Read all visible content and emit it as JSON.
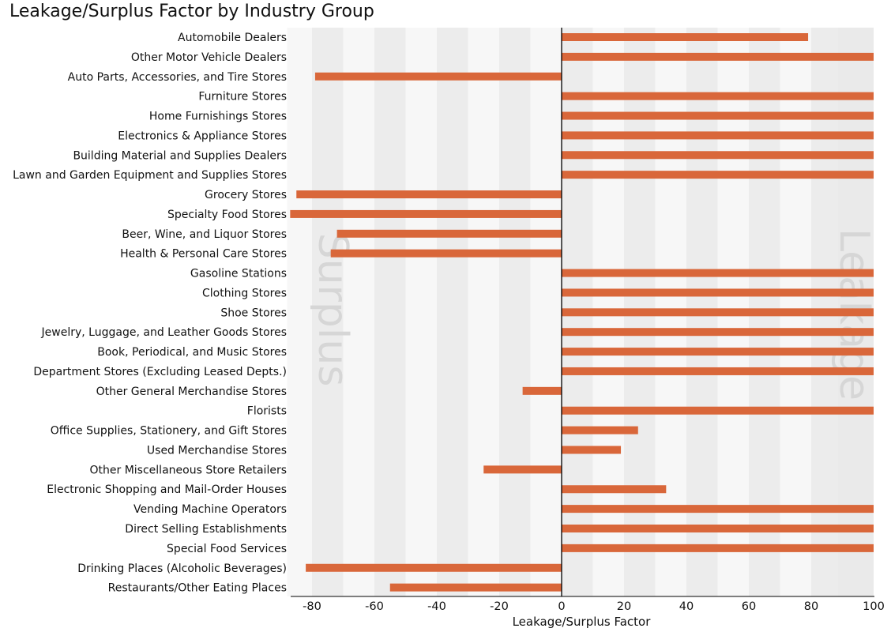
{
  "chart_data": {
    "type": "bar",
    "orientation": "horizontal",
    "title": "Leakage/Surplus Factor by Industry Group",
    "xlabel": "Leakage/Surplus Factor",
    "ylabel": "",
    "xlim": [
      -88,
      100
    ],
    "xticks": [
      -80,
      -60,
      -40,
      -20,
      0,
      20,
      40,
      60,
      80,
      100
    ],
    "grid": "alternating vertical bands",
    "annotations": {
      "left": "Surplus",
      "right": "Leakage"
    },
    "bar_color": "#d9673a",
    "categories": [
      "Automobile Dealers",
      "Other Motor Vehicle Dealers",
      "Auto Parts, Accessories, and Tire Stores",
      "Furniture Stores",
      "Home Furnishings Stores",
      "Electronics & Appliance Stores",
      "Building Material and Supplies Dealers",
      "Lawn and Garden Equipment and Supplies Stores",
      "Grocery Stores",
      "Specialty Food Stores",
      "Beer, Wine, and Liquor Stores",
      "Health & Personal Care Stores",
      "Gasoline Stations",
      "Clothing Stores",
      "Shoe Stores",
      "Jewelry, Luggage, and Leather Goods Stores",
      "Book, Periodical, and Music Stores",
      "Department Stores (Excluding Leased Depts.)",
      "Other General Merchandise Stores",
      "Florists",
      "Office Supplies, Stationery, and Gift Stores",
      "Used Merchandise Stores",
      "Other Miscellaneous Store Retailers",
      "Electronic Shopping and Mail-Order Houses",
      "Vending Machine Operators",
      "Direct Selling Establishments",
      "Special Food Services",
      "Drinking Places (Alcoholic Beverages)",
      "Restaurants/Other Eating Places"
    ],
    "values": [
      79,
      100,
      -79,
      100,
      100,
      100,
      100,
      100,
      -85,
      -87,
      -72,
      -74,
      100,
      100,
      100,
      100,
      100,
      100,
      -12.5,
      100,
      24.5,
      19,
      -25,
      33.5,
      100,
      100,
      100,
      -82,
      -55
    ]
  }
}
